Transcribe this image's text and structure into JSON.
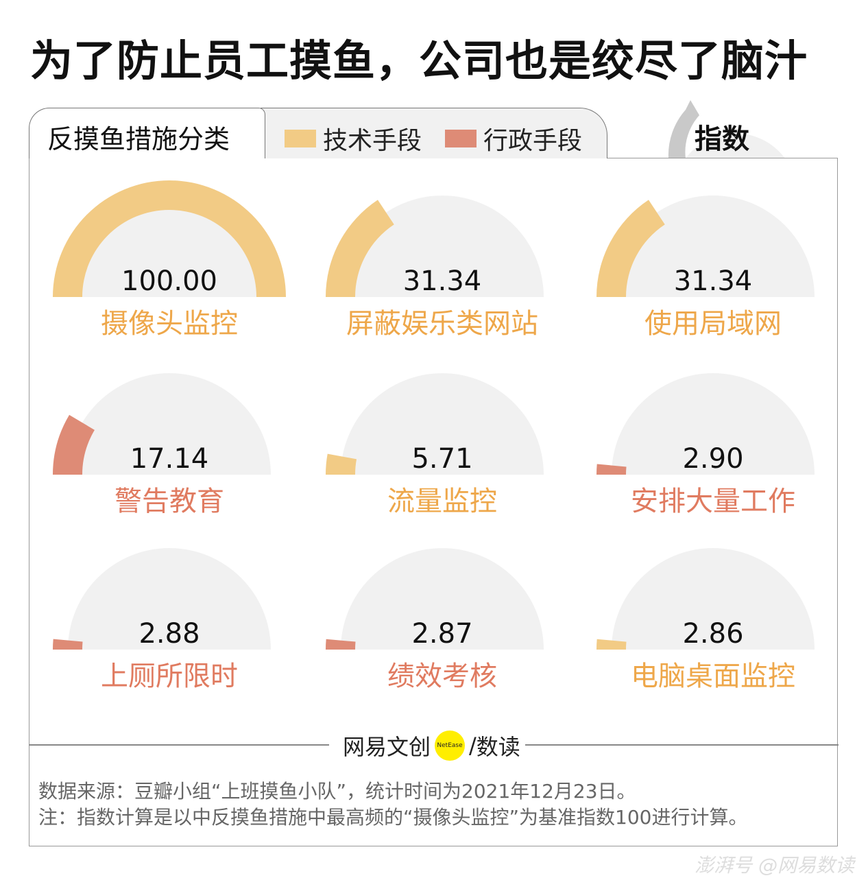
{
  "title": "为了防止员工摸鱼，公司也是绞尽了脑汁",
  "tab_label": "反摸鱼措施分类",
  "index_label": "指数",
  "chart_data": {
    "type": "gauge",
    "max": 100,
    "legend": [
      {
        "name": "技术手段",
        "color": "#f2cb85",
        "label_color": "#eea74a"
      },
      {
        "name": "行政手段",
        "color": "#de8b76",
        "label_color": "#e07b60"
      }
    ],
    "items": [
      {
        "label": "摄像头监控",
        "value": 100.0,
        "display": "100.00",
        "type": "技术手段"
      },
      {
        "label": "屏蔽娱乐类网站",
        "value": 31.34,
        "display": "31.34",
        "type": "技术手段"
      },
      {
        "label": "使用局域网",
        "value": 31.34,
        "display": "31.34",
        "type": "技术手段"
      },
      {
        "label": "警告教育",
        "value": 17.14,
        "display": "17.14",
        "type": "行政手段"
      },
      {
        "label": "流量监控",
        "value": 5.71,
        "display": "5.71",
        "type": "技术手段"
      },
      {
        "label": "安排大量工作",
        "value": 2.9,
        "display": "2.90",
        "type": "行政手段"
      },
      {
        "label": "上厕所限时",
        "value": 2.88,
        "display": "2.88",
        "type": "行政手段"
      },
      {
        "label": "绩效考核",
        "value": 2.87,
        "display": "2.87",
        "type": "行政手段"
      },
      {
        "label": "电脑桌面监控",
        "value": 2.86,
        "display": "2.86",
        "type": "技术手段"
      }
    ]
  },
  "logo": {
    "left": "网易文创",
    "badge": "NetEase",
    "right": "数读"
  },
  "notes": [
    "数据来源：豆瓣小组“上班摸鱼小队”，统计时间为2021年12月23日。",
    "注：指数计算是以中反摸鱼措施中最高频的“摄像头监控”为基准指数100进行计算。"
  ],
  "watermark": "澎湃号 @网易数读"
}
